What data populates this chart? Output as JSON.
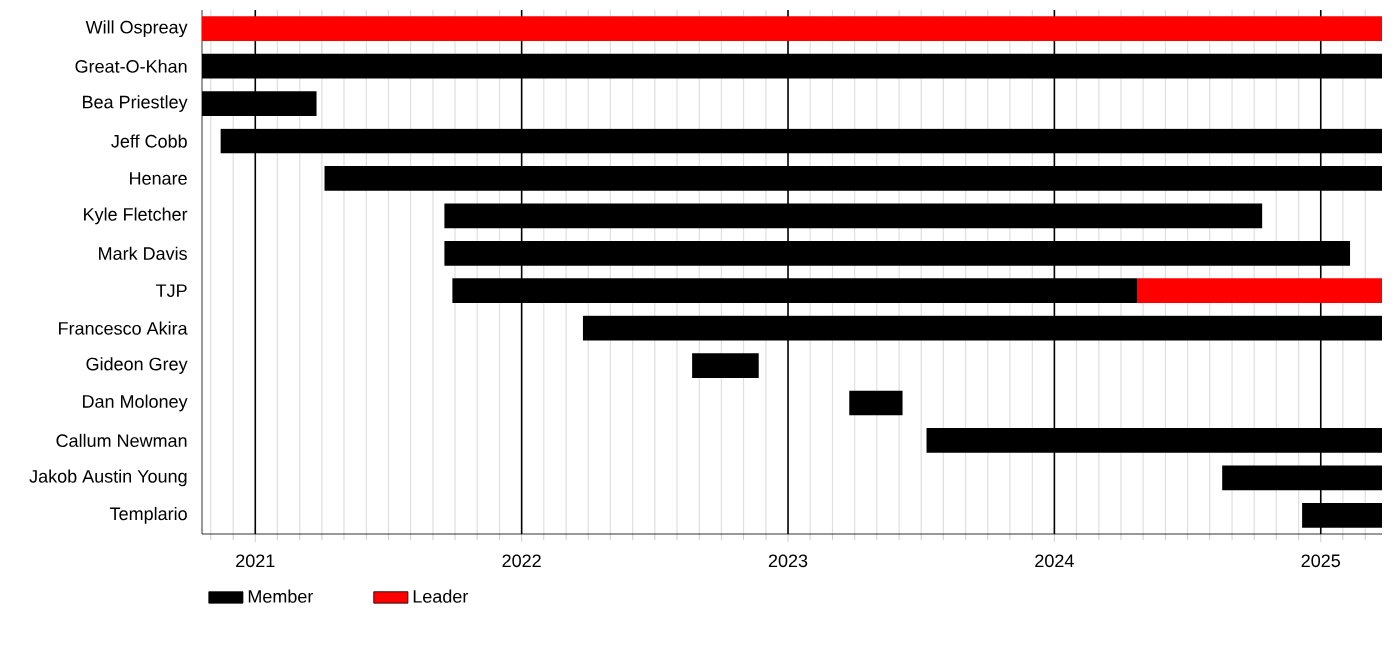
{
  "chart_data": {
    "type": "bar",
    "orientation": "horizontal",
    "categories": [
      "Will Ospreay",
      "Great-O-Khan",
      "Bea Priestley",
      "Jeff Cobb",
      "Henare",
      "Kyle Fletcher",
      "Mark Davis",
      "TJP",
      "Francesco Akira",
      "Gideon Grey",
      "Dan Moloney",
      "Callum Newman",
      "Jakob Austin Young",
      "Templario"
    ],
    "series": [
      {
        "name": "Member",
        "color": "#000000",
        "base": [
          null,
          2020.8,
          2020.8,
          2020.87,
          2021.26,
          2021.71,
          2021.71,
          2021.74,
          2022.23,
          2022.64,
          2023.23,
          2023.52,
          2024.63,
          2024.93
        ],
        "values": [
          null,
          4.43,
          0.43,
          4.36,
          3.97,
          3.07,
          3.4,
          2.57,
          3.0,
          0.25,
          0.2,
          1.71,
          0.6,
          0.3
        ]
      },
      {
        "name": "Leader",
        "color": "#ff0000",
        "base": [
          2020.8,
          null,
          null,
          null,
          null,
          null,
          null,
          2024.31,
          null,
          null,
          null,
          null,
          null,
          null
        ],
        "values": [
          4.43,
          null,
          null,
          null,
          null,
          null,
          null,
          0.92,
          null,
          null,
          null,
          null,
          null,
          null
        ]
      }
    ],
    "xlim": [
      2020.8,
      2025.23
    ],
    "xticks": [
      {
        "value": 2020.833,
        "label": null
      },
      {
        "value": 2020.917,
        "label": null
      },
      2021,
      {
        "value": 2021.083,
        "label": null
      },
      {
        "value": 2021.167,
        "label": null
      },
      {
        "value": 2021.25,
        "label": null
      },
      {
        "value": 2021.333,
        "label": null
      },
      {
        "value": 2021.417,
        "label": null
      },
      {
        "value": 2021.5,
        "label": null
      },
      {
        "value": 2021.583,
        "label": null
      },
      {
        "value": 2021.667,
        "label": null
      },
      {
        "value": 2021.75,
        "label": null
      },
      {
        "value": 2021.833,
        "label": null
      },
      {
        "value": 2021.917,
        "label": null
      },
      2022,
      {
        "value": 2022.083,
        "label": null
      },
      {
        "value": 2022.167,
        "label": null
      },
      {
        "value": 2022.25,
        "label": null
      },
      {
        "value": 2022.333,
        "label": null
      },
      {
        "value": 2022.417,
        "label": null
      },
      {
        "value": 2022.5,
        "label": null
      },
      {
        "value": 2022.583,
        "label": null
      },
      {
        "value": 2022.667,
        "label": null
      },
      {
        "value": 2022.75,
        "label": null
      },
      {
        "value": 2022.833,
        "label": null
      },
      {
        "value": 2022.917,
        "label": null
      },
      2023,
      {
        "value": 2023.083,
        "label": null
      },
      {
        "value": 2023.167,
        "label": null
      },
      {
        "value": 2023.25,
        "label": null
      },
      {
        "value": 2023.333,
        "label": null
      },
      {
        "value": 2023.417,
        "label": null
      },
      {
        "value": 2023.5,
        "label": null
      },
      {
        "value": 2023.583,
        "label": null
      },
      {
        "value": 2023.667,
        "label": null
      },
      {
        "value": 2023.75,
        "label": null
      },
      {
        "value": 2023.833,
        "label": null
      },
      {
        "value": 2023.917,
        "label": null
      },
      2024,
      {
        "value": 2024.083,
        "label": null
      },
      {
        "value": 2024.167,
        "label": null
      },
      {
        "value": 2024.25,
        "label": null
      },
      {
        "value": 2024.333,
        "label": null
      },
      {
        "value": 2024.417,
        "label": null
      },
      {
        "value": 2024.5,
        "label": null
      },
      {
        "value": 2024.583,
        "label": null
      },
      {
        "value": 2024.667,
        "label": null
      },
      {
        "value": 2024.75,
        "label": null
      },
      {
        "value": 2024.833,
        "label": null
      },
      {
        "value": 2024.917,
        "label": null
      },
      2025,
      {
        "value": 2025.083,
        "label": null
      },
      {
        "value": 2025.167,
        "label": null
      }
    ],
    "grid": "x",
    "legend": "bottom"
  }
}
